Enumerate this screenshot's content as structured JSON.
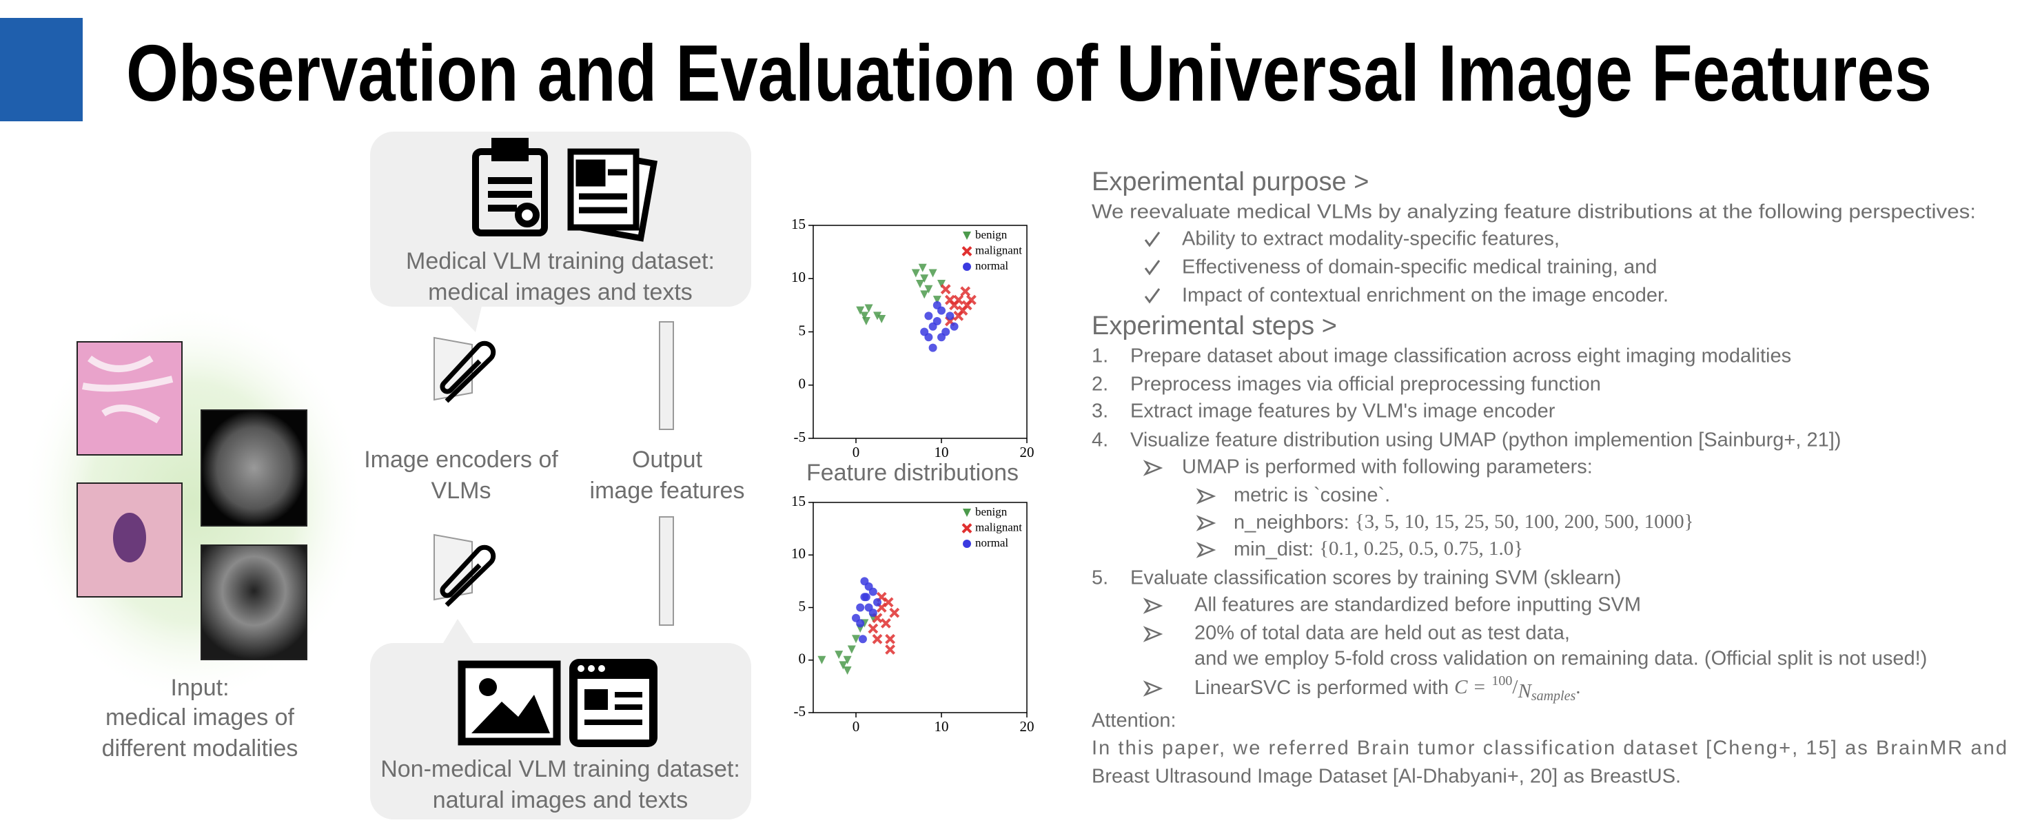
{
  "title": "Observation and Evaluation of Universal Image Features",
  "input_caption": [
    "Input:",
    "medical images of",
    "different modalities"
  ],
  "medical_dataset": [
    "Medical VLM training dataset:",
    "medical images and texts"
  ],
  "nonmedical_dataset": [
    "Non-medical VLM training dataset:",
    "natural images and texts"
  ],
  "encoders": [
    "Image encoders of",
    "VLMs"
  ],
  "output": [
    "Output",
    "image features"
  ],
  "figure_caption": "Feature distributions",
  "chart_data": [
    {
      "type": "scatter",
      "xlim": [
        -5,
        20
      ],
      "ylim": [
        -5,
        15
      ],
      "xticks": [
        0,
        10,
        20
      ],
      "yticks": [
        -5,
        0,
        5,
        10,
        15
      ],
      "legend": "upper right",
      "series": [
        {
          "name": "benign",
          "color": "#4c9a4c",
          "marker": "v",
          "x": [
            0.5,
            1,
            1.5,
            1.2,
            2.5,
            3,
            7,
            7.5,
            8,
            8.5,
            9,
            9.5,
            10,
            8,
            7.8
          ],
          "values": [
            7,
            6.5,
            7.2,
            6,
            6.5,
            6.2,
            10.5,
            9.5,
            10,
            9,
            10.5,
            8,
            9.5,
            8.5,
            11
          ]
        },
        {
          "name": "malignant",
          "color": "#e03030",
          "marker": "x",
          "x": [
            11,
            11.5,
            12,
            12.5,
            13,
            12,
            11,
            10.5,
            13.5,
            12.8
          ],
          "values": [
            8,
            7.5,
            8,
            7,
            7.5,
            6.5,
            6,
            9,
            8,
            8.8
          ]
        },
        {
          "name": "normal",
          "color": "#3a3ae0",
          "marker": "o",
          "x": [
            8,
            8.5,
            9,
            9.5,
            10,
            10.5,
            11,
            9,
            8.5,
            10,
            11.5,
            9.5
          ],
          "values": [
            5,
            4.5,
            5.5,
            6,
            4.5,
            5,
            6.5,
            3.5,
            6.5,
            7,
            5.5,
            7.5
          ]
        }
      ]
    },
    {
      "type": "scatter",
      "xlim": [
        -5,
        20
      ],
      "ylim": [
        -5,
        15
      ],
      "xticks": [
        0,
        10,
        20
      ],
      "yticks": [
        -5,
        0,
        5,
        10,
        15
      ],
      "legend": "upper right",
      "series": [
        {
          "name": "benign",
          "color": "#4c9a4c",
          "marker": "v",
          "x": [
            -4,
            -2,
            -1.5,
            -1,
            -0.5,
            0,
            0.5,
            1,
            2,
            -1
          ],
          "values": [
            0,
            0.5,
            -0.5,
            0,
            1,
            2,
            3,
            3.5,
            4,
            -1
          ]
        },
        {
          "name": "malignant",
          "color": "#e03030",
          "marker": "x",
          "x": [
            2,
            2.5,
            3,
            3.5,
            4,
            4.5,
            3,
            2.5,
            4,
            3.8
          ],
          "values": [
            3,
            4,
            5,
            3.5,
            2,
            4.5,
            6,
            2,
            1,
            5.5
          ]
        },
        {
          "name": "normal",
          "color": "#3a3ae0",
          "marker": "o",
          "x": [
            0,
            0.5,
            1,
            1.5,
            2,
            1,
            0.5,
            1.5,
            2.5,
            0.8,
            1.2,
            2
          ],
          "values": [
            4,
            5,
            6,
            7,
            6.5,
            7.5,
            3.5,
            5,
            5.5,
            2,
            6,
            4.5
          ]
        }
      ]
    }
  ],
  "purpose": {
    "heading": "Experimental purpose >",
    "intro": "We reevaluate medical VLMs by analyzing feature distributions at the following perspectives:",
    "items": [
      "Ability to extract modality-specific features,",
      "Effectiveness of domain-specific medical training, and",
      "Impact of contextual enrichment on the image encoder."
    ]
  },
  "steps": {
    "heading": "Experimental steps >",
    "items": [
      {
        "num": "1.",
        "text": "Prepare dataset about image classification across eight imaging modalities"
      },
      {
        "num": "2.",
        "text": "Preprocess images via official preprocessing function"
      },
      {
        "num": "3.",
        "text": "Extract image features by VLM's image encoder"
      },
      {
        "num": "4.",
        "text": "Visualize feature distribution using UMAP (python implemention [Sainburg+, 21])"
      },
      {
        "num": "5.",
        "text": "Evaluate classification scores by training SVM (sklearn)"
      }
    ],
    "umap": {
      "text": "UMAP is performed with following parameters:",
      "params": [
        {
          "label": "metric is `cosine`."
        },
        {
          "label": "n_neighbors:",
          "math": "{3, 5, 10, 15, 25, 50, 100, 200, 500, 1000}"
        },
        {
          "label": "min_dist:",
          "math": "{0.1, 0.25, 0.5, 0.75, 1.0}"
        }
      ]
    },
    "svm": [
      "All features are standardized before inputting SVM",
      "20% of total data are held out as test data,",
      "and we employ 5-fold cross validation on remaining data. (Official split is not used!)",
      "LinearSVC is performed with"
    ],
    "svm_math": {
      "lhs": "C =",
      "num": "100",
      "den": "N",
      "sub": "samples",
      "end": "."
    }
  },
  "attention": {
    "heading": "Attention:",
    "lines": [
      "In this paper, we referred Brain tumor classification dataset [Cheng+, 15] as BrainMR and",
      "Breast Ultrasound Image Dataset [Al-Dhabyani+, 20] as BreastUS."
    ]
  }
}
